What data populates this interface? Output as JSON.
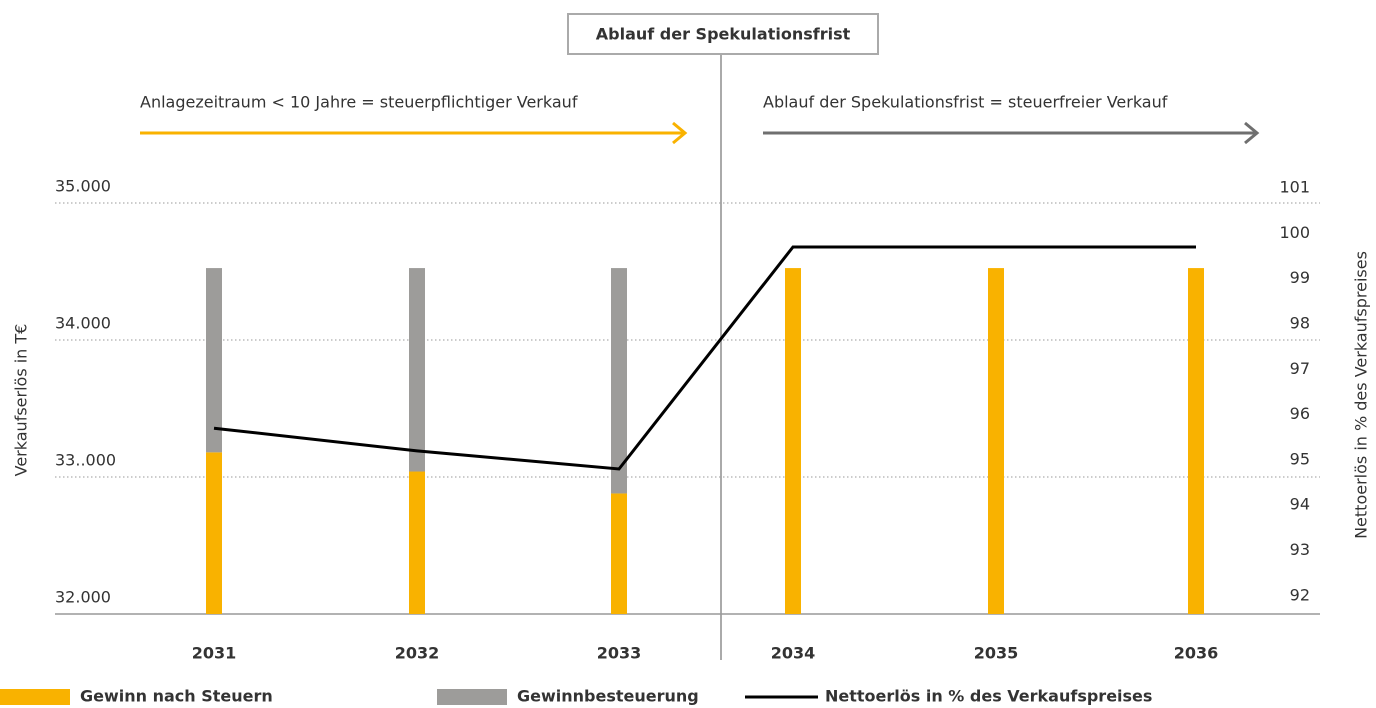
{
  "chart_data": {
    "type": "bar",
    "annotations": {
      "divider": "Ablauf der Spekulationsfrist",
      "left_arrow": "Anlagezeitraum < 10 Jahre = steuerpflichtiger Verkauf",
      "right_arrow": "Ablauf der Spekulationsfrist = steuerfreier Verkauf"
    },
    "ylabel": "Verkaufserlös in T€",
    "y2label": "Nettoerlös in % des Verkaufspreises",
    "categories": [
      "2031",
      "2032",
      "2033",
      "2034",
      "2035",
      "2036"
    ],
    "series": [
      {
        "name": "Gewinn nach Steuern",
        "color": "#f9b200",
        "values": [
          33180,
          33040,
          32880,
          34525,
          34525,
          34525
        ]
      },
      {
        "name": "Gewinnbesteuerung",
        "color": "#9d9c9a",
        "values": [
          1345,
          1485,
          1645,
          0,
          0,
          0
        ]
      },
      {
        "name": "Nettoerlös in % des Verkaufspreises",
        "color": "#000000",
        "type": "line",
        "axis": "y2",
        "values": [
          95.7,
          95.2,
          94.8,
          99.7,
          99.7,
          99.7
        ]
      }
    ],
    "ylim": [
      32000,
      35000
    ],
    "yticks": [
      {
        "value": 32000,
        "label": "32.000"
      },
      {
        "value": 33000,
        "label": "33..000"
      },
      {
        "value": 34000,
        "label": "34.000"
      },
      {
        "value": 35000,
        "label": "35.000"
      }
    ],
    "y2lim": [
      91.6,
      100.67
    ],
    "y2ticks": [
      92,
      93,
      94,
      95,
      96,
      97,
      98,
      99,
      100,
      101
    ],
    "grid": true
  }
}
